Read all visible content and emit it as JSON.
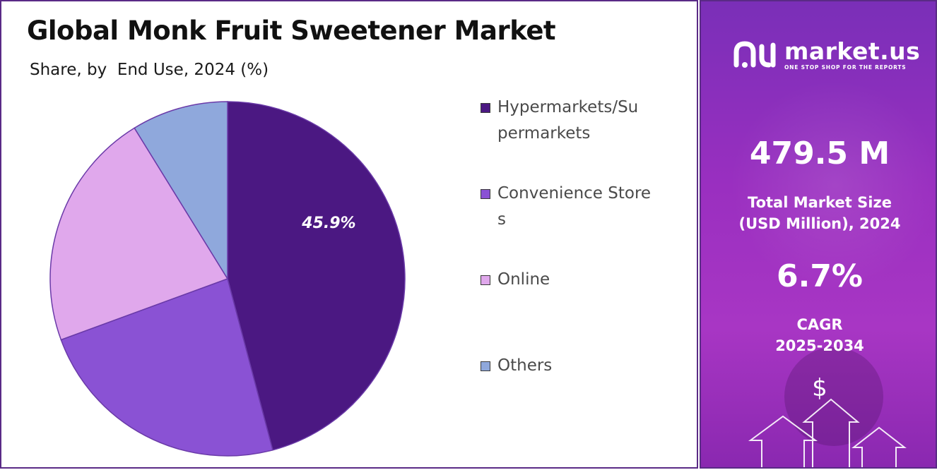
{
  "left": {
    "title": "Global Monk Fruit Sweetener Market",
    "subtitle": "Share, by  End Use, 2024 (%)"
  },
  "chart_data": {
    "type": "pie",
    "title": "Global Monk Fruit Sweetener Market",
    "subtitle": "Share, by  End Use, 2024 (%)",
    "legend_position": "right",
    "slices": [
      {
        "name": "Hypermarkets/Supermarkets",
        "legend_label": "Hypermarkets/Su permarkets",
        "value": 45.9,
        "label": "45.9%",
        "color": "#4b1882"
      },
      {
        "name": "Convenience Stores",
        "legend_label": "Convenience Stores",
        "value": 23.5,
        "label": "",
        "color": "#8a52d4"
      },
      {
        "name": "Online",
        "legend_label": "Online",
        "value": 21.8,
        "label": "",
        "color": "#e0a8ec"
      },
      {
        "name": "Others",
        "legend_label": "Others",
        "value": 8.8,
        "label": "",
        "color": "#8fa8dc"
      }
    ]
  },
  "right": {
    "logo_name": "market.us",
    "logo_tagline": "ONE STOP SHOP FOR THE REPORTS",
    "market_size": "479.5 M",
    "market_size_label_line1": "Total Market Size",
    "market_size_label_line2": "(USD Million), 2024",
    "cagr": "6.7%",
    "cagr_label_line1": "CAGR",
    "cagr_label_line2": "2025-2034",
    "currency_symbol": "$"
  },
  "colors": {
    "border": "#5a2a86",
    "panel_top": "#7a2fb8",
    "panel_bottom": "#a836c4"
  }
}
